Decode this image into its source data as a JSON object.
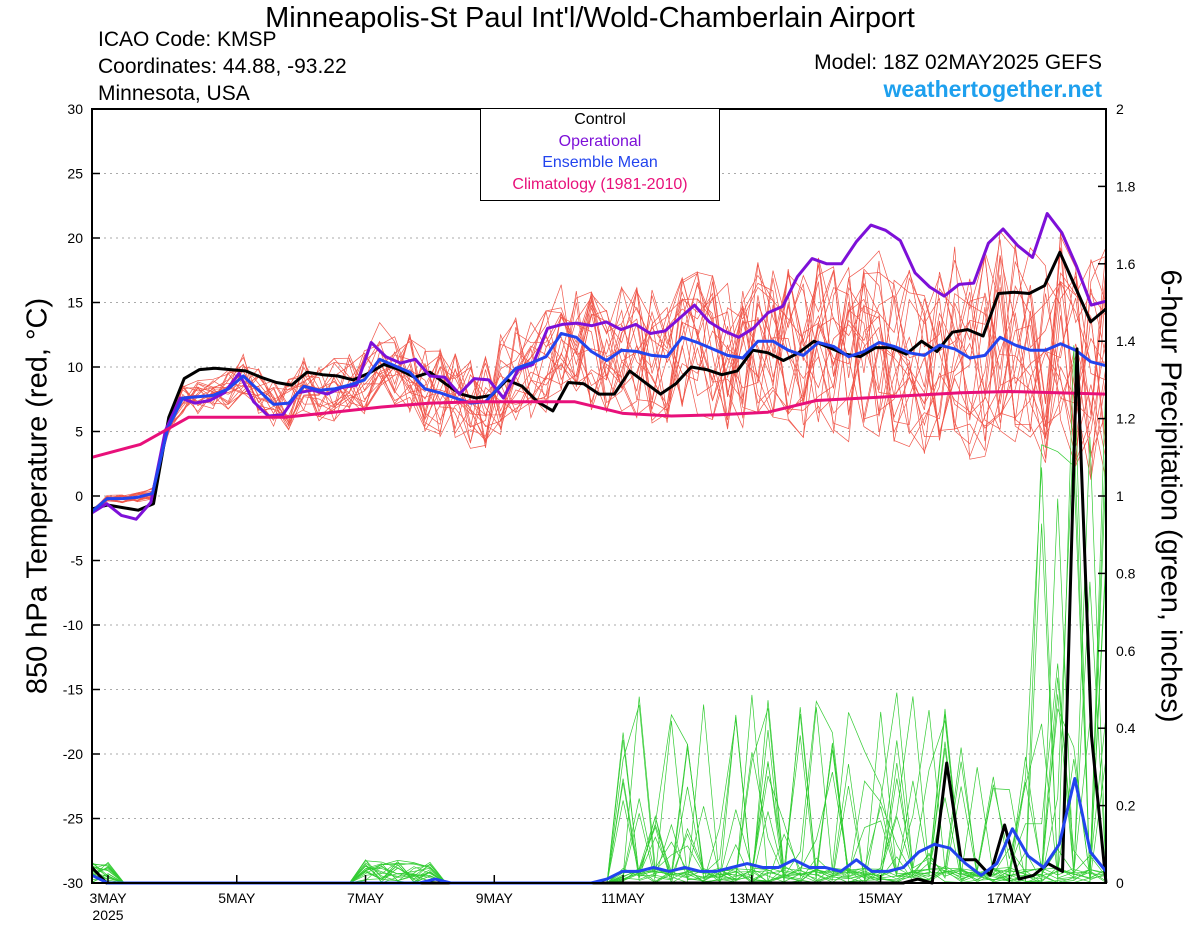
{
  "header": {
    "title": "Minneapolis-St Paul Int'l/Wold-Chamberlain Airport",
    "icao": "ICAO Code: KMSP",
    "coords": "Coordinates: 44.88, -93.22",
    "region": "Minnesota, USA",
    "model": "Model: 18Z 02MAY2025 GEFS",
    "site": "weathertogether.net"
  },
  "chart_data": {
    "type": "line",
    "ylabel": "850 hPa Temperature (red, °C)",
    "y2label": "6-hour Precipitation (green, inches)",
    "ylim": [
      -30,
      30
    ],
    "y2lim": [
      0,
      2
    ],
    "yticks": [
      "30",
      "25",
      "20",
      "15",
      "10",
      "5",
      "0",
      "-5",
      "-10",
      "-15",
      "-20",
      "-25",
      "-30"
    ],
    "y2ticks": [
      "2",
      "1.8",
      "1.6",
      "1.4",
      "1.2",
      "1",
      "0.8",
      "0.6",
      "0.4",
      "0.2",
      "0"
    ],
    "xticks": [
      {
        "label": "3MAY",
        "sub": "2025",
        "day": 0
      },
      {
        "label": "5MAY",
        "sub": "",
        "day": 2
      },
      {
        "label": "7MAY",
        "sub": "",
        "day": 4
      },
      {
        "label": "9MAY",
        "sub": "",
        "day": 6
      },
      {
        "label": "11MAY",
        "sub": "",
        "day": 8
      },
      {
        "label": "13MAY",
        "sub": "",
        "day": 10
      },
      {
        "label": "15MAY",
        "sub": "",
        "day": 12
      },
      {
        "label": "17MAY",
        "sub": "",
        "day": 14
      }
    ],
    "x_days_max": 15.75,
    "legend": [
      "Control",
      "Operational",
      "Ensemble Mean",
      "Climatology (1981-2010)"
    ],
    "colors": {
      "control": "#000000",
      "operational": "#7d10d8",
      "mean": "#2244ee",
      "climatology": "#e8107a",
      "members": "#f0564a",
      "precip": "#33cc33"
    },
    "series": [
      {
        "key": "control",
        "color": "#000000",
        "values": [
          -1,
          -0.7,
          -0.9,
          -1.1,
          -0.6,
          6.1,
          9.1,
          9.8,
          9.9,
          9.8,
          9.7,
          9.2,
          8.8,
          8.6,
          9.6,
          9.4,
          9.3,
          9.0,
          9.5,
          10.2,
          9.8,
          9.2,
          9.6,
          8.7,
          7.9,
          7.6,
          7.8,
          9.0,
          8.5,
          7.3,
          6.6,
          8.8,
          8.7,
          7.9,
          7.9,
          9.7,
          8.8,
          7.9,
          8.7,
          10.0,
          9.8,
          9.4,
          9.7,
          11.3,
          11.1,
          10.5,
          11.1,
          12.0,
          11.5,
          11.0,
          10.8,
          11.5,
          11.5,
          11.0,
          12.0,
          11.2,
          12.7,
          12.9,
          12.4,
          15.7,
          15.8,
          15.7,
          16.3,
          18.9,
          16.2,
          13.5,
          14.5
        ]
      },
      {
        "key": "operational",
        "color": "#7d10d8",
        "values": [
          -1.3,
          -0.6,
          -1.5,
          -1.8,
          -0.5,
          5.1,
          7.6,
          7.2,
          7.4,
          8.0,
          9.5,
          7.3,
          6.2,
          6.3,
          8.0,
          8.2,
          7.9,
          8.4,
          8.6,
          11.9,
          10.8,
          10.3,
          10.6,
          9.3,
          9.2,
          7.9,
          9.1,
          9.0,
          7.6,
          9.8,
          10.2,
          13.0,
          13.3,
          13.4,
          13.2,
          13.5,
          12.9,
          13.3,
          12.6,
          12.8,
          13.8,
          14.8,
          13.5,
          12.8,
          12.3,
          13.0,
          14.2,
          14.7,
          17.0,
          18.4,
          18.0,
          18.0,
          19.7,
          21.0,
          20.6,
          19.8,
          17.3,
          16.2,
          15.5,
          16.4,
          16.5,
          19.6,
          20.7,
          19.4,
          18.5,
          21.9,
          20.4,
          17.8,
          14.8,
          15.1
        ]
      },
      {
        "key": "mean",
        "color": "#2244ee",
        "values": [
          -1.2,
          -0.2,
          -0.2,
          -0.1,
          0.2,
          5.2,
          7.6,
          7.7,
          7.8,
          8.3,
          9.3,
          8.2,
          7.1,
          7.2,
          8.5,
          8.2,
          8.3,
          8.6,
          9.0,
          10.6,
          10.1,
          9.6,
          8.3,
          8.0,
          7.6,
          7.2,
          7.3,
          8.6,
          9.9,
          10.3,
          10.8,
          12.6,
          12.3,
          11.2,
          10.5,
          11.3,
          11.2,
          10.9,
          10.8,
          12.3,
          11.9,
          11.4,
          10.9,
          10.7,
          12.0,
          12.0,
          11.3,
          10.9,
          11.9,
          11.6,
          10.8,
          11.2,
          11.9,
          11.6,
          11.1,
          10.9,
          11.7,
          11.4,
          10.7,
          10.9,
          12.3,
          11.7,
          11.3,
          11.3,
          11.8,
          11.3,
          10.4,
          10.1
        ]
      },
      {
        "key": "climatology",
        "color": "#e8107a",
        "values": [
          3.0,
          4.0,
          6.1,
          6.1,
          6.1,
          6.5,
          6.9,
          7.2,
          7.3,
          7.3,
          7.3,
          6.4,
          6.2,
          6.3,
          6.5,
          7.4,
          7.6,
          7.8,
          8.0,
          8.1,
          8.0,
          7.9
        ]
      }
    ],
    "precip_series": [
      {
        "key": "control",
        "color": "#000000",
        "values": [
          0.04,
          0,
          0,
          0,
          0,
          0,
          0,
          0,
          0,
          0,
          0,
          0,
          0,
          0,
          0,
          0,
          0,
          0,
          0,
          0,
          0,
          0,
          0,
          0,
          0,
          0,
          0,
          0,
          0,
          0,
          0,
          0,
          0,
          0,
          0,
          0,
          0,
          0,
          0,
          0,
          0,
          0,
          0,
          0,
          0,
          0,
          0,
          0,
          0,
          0,
          0,
          0,
          0,
          0,
          0,
          0,
          0,
          0.01,
          0,
          0.31,
          0.06,
          0.06,
          0.02,
          0.15,
          0.01,
          0.02,
          0.05,
          0.03,
          1.38,
          0.38,
          0
        ]
      },
      {
        "key": "mean",
        "color": "#2244ee",
        "values": [
          0.02,
          0,
          0,
          0,
          0,
          0,
          0,
          0,
          0,
          0,
          0,
          0,
          0,
          0,
          0,
          0,
          0,
          0,
          0,
          0,
          0,
          0,
          0.01,
          0,
          0,
          0,
          0,
          0,
          0,
          0,
          0,
          0,
          0,
          0.01,
          0.03,
          0.03,
          0.04,
          0.03,
          0.04,
          0.03,
          0.03,
          0.04,
          0.05,
          0.04,
          0.04,
          0.06,
          0.04,
          0.04,
          0.03,
          0.06,
          0.03,
          0.03,
          0.04,
          0.08,
          0.1,
          0.09,
          0.05,
          0.02,
          0.05,
          0.14,
          0.07,
          0.04,
          0.1,
          0.27,
          0.08,
          0.03
        ]
      }
    ]
  }
}
